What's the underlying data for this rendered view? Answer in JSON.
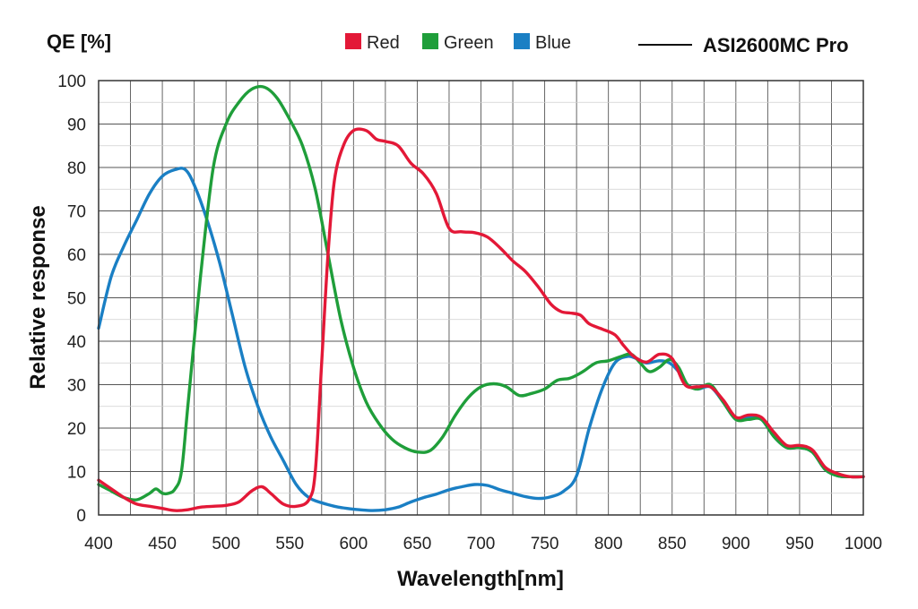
{
  "chart_data": {
    "type": "line",
    "title": "ASI2600MC Pro",
    "qe_label": "QE [%]",
    "xlabel": "Wavelength[nm]",
    "ylabel": "Relative response",
    "xlim": [
      400,
      1000
    ],
    "ylim": [
      0,
      100
    ],
    "grid": true,
    "x_ticks": [
      400,
      450,
      500,
      550,
      600,
      650,
      700,
      750,
      800,
      850,
      900,
      950,
      1000
    ],
    "y_ticks": [
      0,
      10,
      20,
      30,
      40,
      50,
      60,
      70,
      80,
      90,
      100
    ],
    "legend_position": "top",
    "model_line_color": "#111111",
    "series": [
      {
        "name": "Red",
        "color": "#e31837",
        "points": [
          [
            400,
            8
          ],
          [
            410,
            6
          ],
          [
            420,
            4
          ],
          [
            430,
            2.5
          ],
          [
            440,
            2
          ],
          [
            450,
            1.5
          ],
          [
            460,
            1
          ],
          [
            470,
            1.2
          ],
          [
            480,
            1.8
          ],
          [
            490,
            2
          ],
          [
            500,
            2.2
          ],
          [
            510,
            3
          ],
          [
            520,
            5.5
          ],
          [
            528,
            6.5
          ],
          [
            535,
            5
          ],
          [
            545,
            2.5
          ],
          [
            555,
            2
          ],
          [
            565,
            3.5
          ],
          [
            570,
            10
          ],
          [
            575,
            35
          ],
          [
            580,
            60
          ],
          [
            585,
            77
          ],
          [
            592,
            85
          ],
          [
            600,
            88.5
          ],
          [
            610,
            88.5
          ],
          [
            618,
            86.5
          ],
          [
            625,
            86
          ],
          [
            635,
            85
          ],
          [
            645,
            81
          ],
          [
            655,
            78.5
          ],
          [
            665,
            74
          ],
          [
            675,
            66
          ],
          [
            685,
            65.2
          ],
          [
            695,
            65
          ],
          [
            705,
            64
          ],
          [
            715,
            61.5
          ],
          [
            725,
            58.5
          ],
          [
            735,
            56
          ],
          [
            745,
            52.5
          ],
          [
            755,
            48.5
          ],
          [
            763,
            46.8
          ],
          [
            770,
            46.5
          ],
          [
            778,
            46
          ],
          [
            785,
            44
          ],
          [
            795,
            42.8
          ],
          [
            805,
            41.5
          ],
          [
            812,
            39
          ],
          [
            820,
            36.5
          ],
          [
            830,
            35.2
          ],
          [
            840,
            37
          ],
          [
            850,
            36
          ],
          [
            860,
            30
          ],
          [
            870,
            29.5
          ],
          [
            880,
            29.5
          ],
          [
            890,
            26.5
          ],
          [
            900,
            22.5
          ],
          [
            910,
            23
          ],
          [
            920,
            22.5
          ],
          [
            930,
            19
          ],
          [
            940,
            16
          ],
          [
            950,
            16
          ],
          [
            960,
            15
          ],
          [
            970,
            11
          ],
          [
            980,
            9.5
          ],
          [
            990,
            8.8
          ],
          [
            1000,
            8.8
          ]
        ]
      },
      {
        "name": "Green",
        "color": "#1f9e3a",
        "points": [
          [
            400,
            7
          ],
          [
            410,
            5.5
          ],
          [
            420,
            4
          ],
          [
            430,
            3.5
          ],
          [
            440,
            5
          ],
          [
            445,
            6
          ],
          [
            450,
            5
          ],
          [
            455,
            5
          ],
          [
            460,
            6
          ],
          [
            465,
            10
          ],
          [
            470,
            25
          ],
          [
            480,
            55
          ],
          [
            490,
            80
          ],
          [
            500,
            90
          ],
          [
            510,
            95
          ],
          [
            520,
            98
          ],
          [
            530,
            98.5
          ],
          [
            540,
            96
          ],
          [
            550,
            91
          ],
          [
            560,
            85
          ],
          [
            570,
            75
          ],
          [
            580,
            60
          ],
          [
            590,
            45
          ],
          [
            600,
            34
          ],
          [
            610,
            26
          ],
          [
            620,
            21
          ],
          [
            630,
            17.5
          ],
          [
            640,
            15.5
          ],
          [
            650,
            14.5
          ],
          [
            660,
            14.8
          ],
          [
            670,
            18
          ],
          [
            680,
            23
          ],
          [
            690,
            27
          ],
          [
            700,
            29.5
          ],
          [
            710,
            30.2
          ],
          [
            720,
            29.5
          ],
          [
            730,
            27.5
          ],
          [
            740,
            28
          ],
          [
            750,
            29
          ],
          [
            760,
            31
          ],
          [
            770,
            31.5
          ],
          [
            780,
            33
          ],
          [
            790,
            35
          ],
          [
            800,
            35.5
          ],
          [
            810,
            36.5
          ],
          [
            818,
            37
          ],
          [
            825,
            35
          ],
          [
            832,
            33
          ],
          [
            840,
            34
          ],
          [
            848,
            35.8
          ],
          [
            855,
            34
          ],
          [
            862,
            30
          ],
          [
            870,
            29
          ],
          [
            880,
            30
          ],
          [
            890,
            26
          ],
          [
            900,
            22
          ],
          [
            910,
            22
          ],
          [
            920,
            22
          ],
          [
            930,
            18
          ],
          [
            940,
            15.5
          ],
          [
            950,
            15.5
          ],
          [
            960,
            14.5
          ],
          [
            970,
            10.5
          ],
          [
            980,
            9
          ],
          [
            990,
            8.8
          ],
          [
            1000,
            8.8
          ]
        ]
      },
      {
        "name": "Blue",
        "color": "#1a7fc4",
        "points": [
          [
            400,
            43
          ],
          [
            410,
            55
          ],
          [
            420,
            62
          ],
          [
            430,
            68
          ],
          [
            440,
            74
          ],
          [
            450,
            78
          ],
          [
            460,
            79.5
          ],
          [
            468,
            79.5
          ],
          [
            475,
            76
          ],
          [
            485,
            68
          ],
          [
            495,
            58
          ],
          [
            505,
            46
          ],
          [
            515,
            34
          ],
          [
            525,
            25
          ],
          [
            535,
            18
          ],
          [
            545,
            12.5
          ],
          [
            555,
            7
          ],
          [
            565,
            4
          ],
          [
            575,
            2.8
          ],
          [
            585,
            2
          ],
          [
            595,
            1.5
          ],
          [
            605,
            1.2
          ],
          [
            615,
            1
          ],
          [
            625,
            1.2
          ],
          [
            635,
            1.8
          ],
          [
            645,
            3
          ],
          [
            655,
            4
          ],
          [
            665,
            4.8
          ],
          [
            675,
            5.8
          ],
          [
            685,
            6.5
          ],
          [
            695,
            7
          ],
          [
            705,
            6.8
          ],
          [
            715,
            5.8
          ],
          [
            725,
            5
          ],
          [
            735,
            4.2
          ],
          [
            745,
            3.8
          ],
          [
            755,
            4.2
          ],
          [
            765,
            5.5
          ],
          [
            775,
            9
          ],
          [
            785,
            20
          ],
          [
            795,
            29
          ],
          [
            805,
            35
          ],
          [
            815,
            36.5
          ],
          [
            822,
            36
          ],
          [
            830,
            35
          ],
          [
            840,
            35.5
          ],
          [
            848,
            35
          ],
          [
            855,
            33
          ],
          [
            862,
            30
          ],
          [
            870,
            29
          ],
          [
            880,
            29.5
          ],
          [
            890,
            26
          ],
          [
            900,
            22
          ],
          [
            910,
            22.5
          ],
          [
            920,
            22
          ],
          [
            930,
            18
          ],
          [
            940,
            15.5
          ],
          [
            950,
            15.5
          ],
          [
            960,
            14.5
          ],
          [
            970,
            10.5
          ],
          [
            980,
            9
          ],
          [
            990,
            8.8
          ],
          [
            1000,
            8.8
          ]
        ]
      }
    ]
  }
}
